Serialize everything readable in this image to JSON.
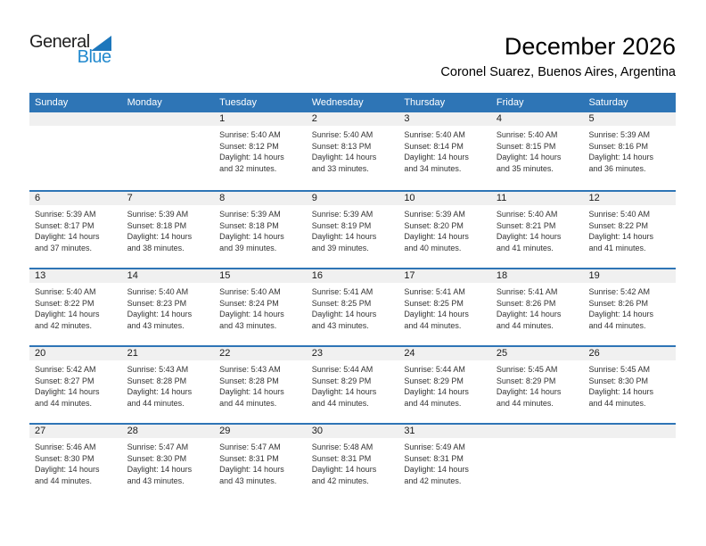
{
  "logo": {
    "part1": "General",
    "part2": "Blue"
  },
  "header": {
    "title": "December 2026",
    "subtitle": "Coronel Suarez, Buenos Aires, Argentina"
  },
  "weekday_headers": [
    "Sunday",
    "Monday",
    "Tuesday",
    "Wednesday",
    "Thursday",
    "Friday",
    "Saturday"
  ],
  "colors": {
    "header_blue": "#2E75B6",
    "divider_blue": "#2E75B6",
    "strip_gray": "#F0F0F0",
    "logo_text_blue": "#2189CE",
    "logo_triangle_blue": "#1D77BC"
  },
  "calendar": {
    "leading_empty_cells": 2,
    "trailing_empty_cells": 2,
    "days": [
      {
        "date": "1",
        "sunrise": "Sunrise: 5:40 AM",
        "sunset": "Sunset: 8:12 PM",
        "daylight1": "Daylight: 14 hours",
        "daylight2": "and 32 minutes."
      },
      {
        "date": "2",
        "sunrise": "Sunrise: 5:40 AM",
        "sunset": "Sunset: 8:13 PM",
        "daylight1": "Daylight: 14 hours",
        "daylight2": "and 33 minutes."
      },
      {
        "date": "3",
        "sunrise": "Sunrise: 5:40 AM",
        "sunset": "Sunset: 8:14 PM",
        "daylight1": "Daylight: 14 hours",
        "daylight2": "and 34 minutes."
      },
      {
        "date": "4",
        "sunrise": "Sunrise: 5:40 AM",
        "sunset": "Sunset: 8:15 PM",
        "daylight1": "Daylight: 14 hours",
        "daylight2": "and 35 minutes."
      },
      {
        "date": "5",
        "sunrise": "Sunrise: 5:39 AM",
        "sunset": "Sunset: 8:16 PM",
        "daylight1": "Daylight: 14 hours",
        "daylight2": "and 36 minutes."
      },
      {
        "date": "6",
        "sunrise": "Sunrise: 5:39 AM",
        "sunset": "Sunset: 8:17 PM",
        "daylight1": "Daylight: 14 hours",
        "daylight2": "and 37 minutes."
      },
      {
        "date": "7",
        "sunrise": "Sunrise: 5:39 AM",
        "sunset": "Sunset: 8:18 PM",
        "daylight1": "Daylight: 14 hours",
        "daylight2": "and 38 minutes."
      },
      {
        "date": "8",
        "sunrise": "Sunrise: 5:39 AM",
        "sunset": "Sunset: 8:18 PM",
        "daylight1": "Daylight: 14 hours",
        "daylight2": "and 39 minutes."
      },
      {
        "date": "9",
        "sunrise": "Sunrise: 5:39 AM",
        "sunset": "Sunset: 8:19 PM",
        "daylight1": "Daylight: 14 hours",
        "daylight2": "and 39 minutes."
      },
      {
        "date": "10",
        "sunrise": "Sunrise: 5:39 AM",
        "sunset": "Sunset: 8:20 PM",
        "daylight1": "Daylight: 14 hours",
        "daylight2": "and 40 minutes."
      },
      {
        "date": "11",
        "sunrise": "Sunrise: 5:40 AM",
        "sunset": "Sunset: 8:21 PM",
        "daylight1": "Daylight: 14 hours",
        "daylight2": "and 41 minutes."
      },
      {
        "date": "12",
        "sunrise": "Sunrise: 5:40 AM",
        "sunset": "Sunset: 8:22 PM",
        "daylight1": "Daylight: 14 hours",
        "daylight2": "and 41 minutes."
      },
      {
        "date": "13",
        "sunrise": "Sunrise: 5:40 AM",
        "sunset": "Sunset: 8:22 PM",
        "daylight1": "Daylight: 14 hours",
        "daylight2": "and 42 minutes."
      },
      {
        "date": "14",
        "sunrise": "Sunrise: 5:40 AM",
        "sunset": "Sunset: 8:23 PM",
        "daylight1": "Daylight: 14 hours",
        "daylight2": "and 43 minutes."
      },
      {
        "date": "15",
        "sunrise": "Sunrise: 5:40 AM",
        "sunset": "Sunset: 8:24 PM",
        "daylight1": "Daylight: 14 hours",
        "daylight2": "and 43 minutes."
      },
      {
        "date": "16",
        "sunrise": "Sunrise: 5:41 AM",
        "sunset": "Sunset: 8:25 PM",
        "daylight1": "Daylight: 14 hours",
        "daylight2": "and 43 minutes."
      },
      {
        "date": "17",
        "sunrise": "Sunrise: 5:41 AM",
        "sunset": "Sunset: 8:25 PM",
        "daylight1": "Daylight: 14 hours",
        "daylight2": "and 44 minutes."
      },
      {
        "date": "18",
        "sunrise": "Sunrise: 5:41 AM",
        "sunset": "Sunset: 8:26 PM",
        "daylight1": "Daylight: 14 hours",
        "daylight2": "and 44 minutes."
      },
      {
        "date": "19",
        "sunrise": "Sunrise: 5:42 AM",
        "sunset": "Sunset: 8:26 PM",
        "daylight1": "Daylight: 14 hours",
        "daylight2": "and 44 minutes."
      },
      {
        "date": "20",
        "sunrise": "Sunrise: 5:42 AM",
        "sunset": "Sunset: 8:27 PM",
        "daylight1": "Daylight: 14 hours",
        "daylight2": "and 44 minutes."
      },
      {
        "date": "21",
        "sunrise": "Sunrise: 5:43 AM",
        "sunset": "Sunset: 8:28 PM",
        "daylight1": "Daylight: 14 hours",
        "daylight2": "and 44 minutes."
      },
      {
        "date": "22",
        "sunrise": "Sunrise: 5:43 AM",
        "sunset": "Sunset: 8:28 PM",
        "daylight1": "Daylight: 14 hours",
        "daylight2": "and 44 minutes."
      },
      {
        "date": "23",
        "sunrise": "Sunrise: 5:44 AM",
        "sunset": "Sunset: 8:29 PM",
        "daylight1": "Daylight: 14 hours",
        "daylight2": "and 44 minutes."
      },
      {
        "date": "24",
        "sunrise": "Sunrise: 5:44 AM",
        "sunset": "Sunset: 8:29 PM",
        "daylight1": "Daylight: 14 hours",
        "daylight2": "and 44 minutes."
      },
      {
        "date": "25",
        "sunrise": "Sunrise: 5:45 AM",
        "sunset": "Sunset: 8:29 PM",
        "daylight1": "Daylight: 14 hours",
        "daylight2": "and 44 minutes."
      },
      {
        "date": "26",
        "sunrise": "Sunrise: 5:45 AM",
        "sunset": "Sunset: 8:30 PM",
        "daylight1": "Daylight: 14 hours",
        "daylight2": "and 44 minutes."
      },
      {
        "date": "27",
        "sunrise": "Sunrise: 5:46 AM",
        "sunset": "Sunset: 8:30 PM",
        "daylight1": "Daylight: 14 hours",
        "daylight2": "and 44 minutes."
      },
      {
        "date": "28",
        "sunrise": "Sunrise: 5:47 AM",
        "sunset": "Sunset: 8:30 PM",
        "daylight1": "Daylight: 14 hours",
        "daylight2": "and 43 minutes."
      },
      {
        "date": "29",
        "sunrise": "Sunrise: 5:47 AM",
        "sunset": "Sunset: 8:31 PM",
        "daylight1": "Daylight: 14 hours",
        "daylight2": "and 43 minutes."
      },
      {
        "date": "30",
        "sunrise": "Sunrise: 5:48 AM",
        "sunset": "Sunset: 8:31 PM",
        "daylight1": "Daylight: 14 hours",
        "daylight2": "and 42 minutes."
      },
      {
        "date": "31",
        "sunrise": "Sunrise: 5:49 AM",
        "sunset": "Sunset: 8:31 PM",
        "daylight1": "Daylight: 14 hours",
        "daylight2": "and 42 minutes."
      }
    ]
  }
}
